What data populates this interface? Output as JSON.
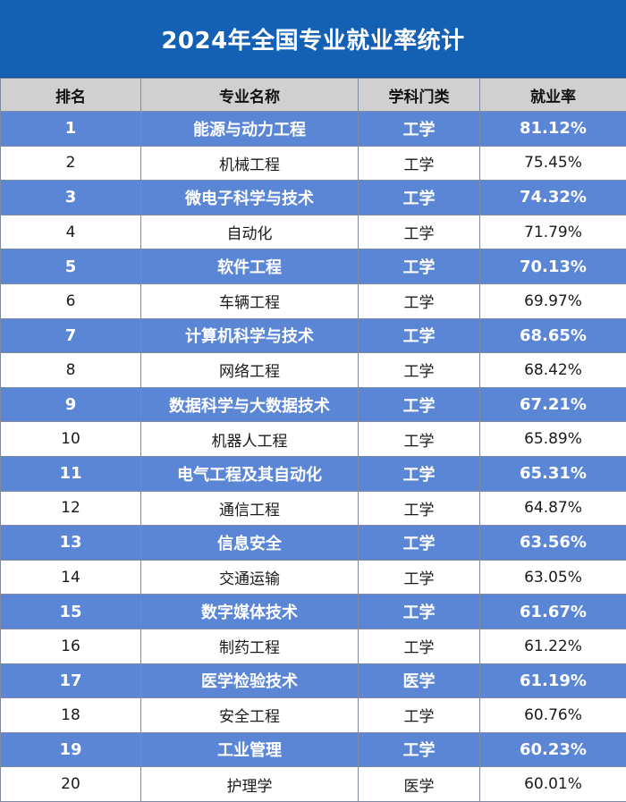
{
  "title": "2024年全国专业就业率统计",
  "headers": {
    "rank": "排名",
    "major": "专业名称",
    "category": "学科门类",
    "rate": "就业率"
  },
  "colors": {
    "title_bg": "#1460b4",
    "header_bg": "#d0d0d0",
    "highlight_row_bg": "#5b86d6",
    "plain_row_bg": "#ffffff"
  },
  "rows": [
    {
      "rank": "1",
      "major": "能源与动力工程",
      "category": "工学",
      "rate": "81.12%"
    },
    {
      "rank": "2",
      "major": "机械工程",
      "category": "工学",
      "rate": "75.45%"
    },
    {
      "rank": "3",
      "major": "微电子科学与技术",
      "category": "工学",
      "rate": "74.32%"
    },
    {
      "rank": "4",
      "major": "自动化",
      "category": "工学",
      "rate": "71.79%"
    },
    {
      "rank": "5",
      "major": "软件工程",
      "category": "工学",
      "rate": "70.13%"
    },
    {
      "rank": "6",
      "major": "车辆工程",
      "category": "工学",
      "rate": "69.97%"
    },
    {
      "rank": "7",
      "major": "计算机科学与技术",
      "category": "工学",
      "rate": "68.65%"
    },
    {
      "rank": "8",
      "major": "网络工程",
      "category": "工学",
      "rate": "68.42%"
    },
    {
      "rank": "9",
      "major": "数据科学与大数据技术",
      "category": "工学",
      "rate": "67.21%"
    },
    {
      "rank": "10",
      "major": "机器人工程",
      "category": "工学",
      "rate": "65.89%"
    },
    {
      "rank": "11",
      "major": "电气工程及其自动化",
      "category": "工学",
      "rate": "65.31%"
    },
    {
      "rank": "12",
      "major": "通信工程",
      "category": "工学",
      "rate": "64.87%"
    },
    {
      "rank": "13",
      "major": "信息安全",
      "category": "工学",
      "rate": "63.56%"
    },
    {
      "rank": "14",
      "major": "交通运输",
      "category": "工学",
      "rate": "63.05%"
    },
    {
      "rank": "15",
      "major": "数字媒体技术",
      "category": "工学",
      "rate": "61.67%"
    },
    {
      "rank": "16",
      "major": "制药工程",
      "category": "工学",
      "rate": "61.22%"
    },
    {
      "rank": "17",
      "major": "医学检验技术",
      "category": "医学",
      "rate": "61.19%"
    },
    {
      "rank": "18",
      "major": "安全工程",
      "category": "工学",
      "rate": "60.76%"
    },
    {
      "rank": "19",
      "major": "工业管理",
      "category": "工学",
      "rate": "60.23%"
    },
    {
      "rank": "20",
      "major": "护理学",
      "category": "医学",
      "rate": "60.01%"
    }
  ]
}
